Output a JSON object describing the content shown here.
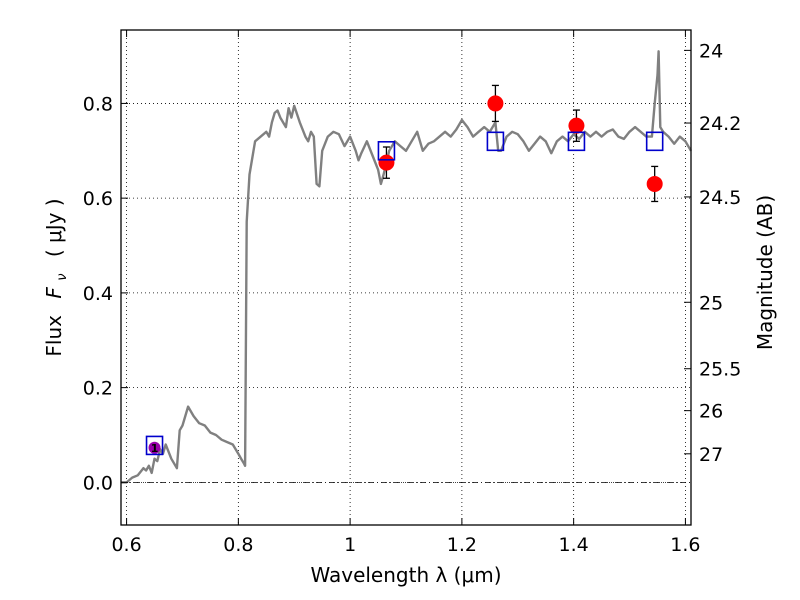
{
  "chart_data": {
    "type": "line",
    "xlabel": "Wavelength  λ (μm)",
    "ylabel": "Flux  F_ν  ( μJy )",
    "ylabel_parts": {
      "prefix": "Flux",
      "symbol": "F",
      "subscript": "ν",
      "unit": "( μJy )"
    },
    "y2label": "Magnitude (AB)",
    "xlim": [
      0.59,
      1.61
    ],
    "ylim": [
      -0.09,
      0.955
    ],
    "grid": true,
    "x_ticks": [
      0.6,
      0.8,
      1.0,
      1.2,
      1.4,
      1.6
    ],
    "x_tick_labels": [
      "0.6",
      "0.8",
      "1",
      "1.2",
      "1.4",
      "1.6"
    ],
    "y_ticks": [
      0.0,
      0.2,
      0.4,
      0.6,
      0.8
    ],
    "y_tick_labels": [
      "0.0",
      "0.2",
      "0.4",
      "0.6",
      "0.8"
    ],
    "y2_tick_labels": [
      "24",
      "24.2",
      "24.5",
      "25",
      "25.5",
      "26",
      "27"
    ],
    "y2_tick_flux": [
      0.912,
      0.7586,
      0.6026,
      0.3802,
      0.2399,
      0.1514,
      0.0603
    ],
    "colors": {
      "model": "#808080",
      "observed": "#ff0000",
      "model_photometry": "#0000cc",
      "marker_fill": "#9900aa",
      "grid": "#000000",
      "zero_line": "#000000"
    },
    "series": [
      {
        "type": "line",
        "x": [
          0.59,
          0.6,
          0.61,
          0.62,
          0.63,
          0.635,
          0.64,
          0.645,
          0.65,
          0.655,
          0.66,
          0.665,
          0.67,
          0.68,
          0.69,
          0.695,
          0.7,
          0.71,
          0.72,
          0.73,
          0.74,
          0.75,
          0.76,
          0.77,
          0.78,
          0.79,
          0.8,
          0.805,
          0.81,
          0.812,
          0.815,
          0.82,
          0.83,
          0.84,
          0.85,
          0.855,
          0.86,
          0.865,
          0.87,
          0.875,
          0.88,
          0.885,
          0.89,
          0.895,
          0.9,
          0.91,
          0.92,
          0.925,
          0.93,
          0.935,
          0.94,
          0.945,
          0.95,
          0.96,
          0.97,
          0.98,
          0.99,
          1.0,
          1.01,
          1.015,
          1.02,
          1.03,
          1.04,
          1.05,
          1.055,
          1.06,
          1.07,
          1.08,
          1.09,
          1.1,
          1.11,
          1.12,
          1.13,
          1.14,
          1.15,
          1.16,
          1.17,
          1.18,
          1.19,
          1.2,
          1.21,
          1.22,
          1.23,
          1.24,
          1.25,
          1.26,
          1.265,
          1.27,
          1.28,
          1.29,
          1.3,
          1.31,
          1.32,
          1.33,
          1.34,
          1.35,
          1.36,
          1.37,
          1.38,
          1.39,
          1.4,
          1.41,
          1.42,
          1.43,
          1.44,
          1.45,
          1.46,
          1.47,
          1.48,
          1.49,
          1.5,
          1.51,
          1.52,
          1.53,
          1.54,
          1.545,
          1.55,
          1.552,
          1.555,
          1.56,
          1.57,
          1.58,
          1.59,
          1.6,
          1.61
        ],
        "y": [
          0.0,
          0.0,
          0.01,
          0.015,
          0.03,
          0.025,
          0.035,
          0.02,
          0.05,
          0.045,
          0.07,
          0.06,
          0.08,
          0.05,
          0.03,
          0.11,
          0.12,
          0.16,
          0.14,
          0.125,
          0.12,
          0.105,
          0.1,
          0.09,
          0.085,
          0.08,
          0.06,
          0.05,
          0.04,
          0.035,
          0.55,
          0.65,
          0.72,
          0.73,
          0.74,
          0.73,
          0.76,
          0.78,
          0.785,
          0.77,
          0.76,
          0.75,
          0.79,
          0.77,
          0.795,
          0.76,
          0.73,
          0.72,
          0.74,
          0.73,
          0.63,
          0.625,
          0.7,
          0.73,
          0.74,
          0.735,
          0.71,
          0.73,
          0.7,
          0.68,
          0.695,
          0.72,
          0.69,
          0.66,
          0.63,
          0.65,
          0.7,
          0.72,
          0.71,
          0.7,
          0.72,
          0.74,
          0.7,
          0.715,
          0.72,
          0.73,
          0.74,
          0.73,
          0.745,
          0.765,
          0.75,
          0.73,
          0.74,
          0.75,
          0.74,
          0.76,
          0.7,
          0.7,
          0.73,
          0.74,
          0.735,
          0.72,
          0.7,
          0.715,
          0.73,
          0.72,
          0.695,
          0.72,
          0.73,
          0.72,
          0.735,
          0.725,
          0.74,
          0.73,
          0.74,
          0.73,
          0.74,
          0.745,
          0.73,
          0.725,
          0.74,
          0.75,
          0.74,
          0.73,
          0.73,
          0.8,
          0.86,
          0.91,
          0.75,
          0.74,
          0.73,
          0.715,
          0.73,
          0.72,
          0.7
        ]
      },
      {
        "type": "scatter-errorbar",
        "x": [
          0.65,
          1.065,
          1.26,
          1.405,
          1.545
        ],
        "y": [
          0.073,
          0.675,
          0.8,
          0.753,
          0.63
        ],
        "yerr": [
          0.0,
          0.033,
          0.038,
          0.033,
          0.037
        ]
      },
      {
        "type": "scatter",
        "x": [
          0.65,
          1.065,
          1.26,
          1.405,
          1.545
        ],
        "y": [
          0.078,
          0.7,
          0.72,
          0.72,
          0.72
        ]
      }
    ],
    "annotations": [
      {
        "x": 0.65,
        "y": 0.073,
        "text": "1"
      }
    ]
  }
}
